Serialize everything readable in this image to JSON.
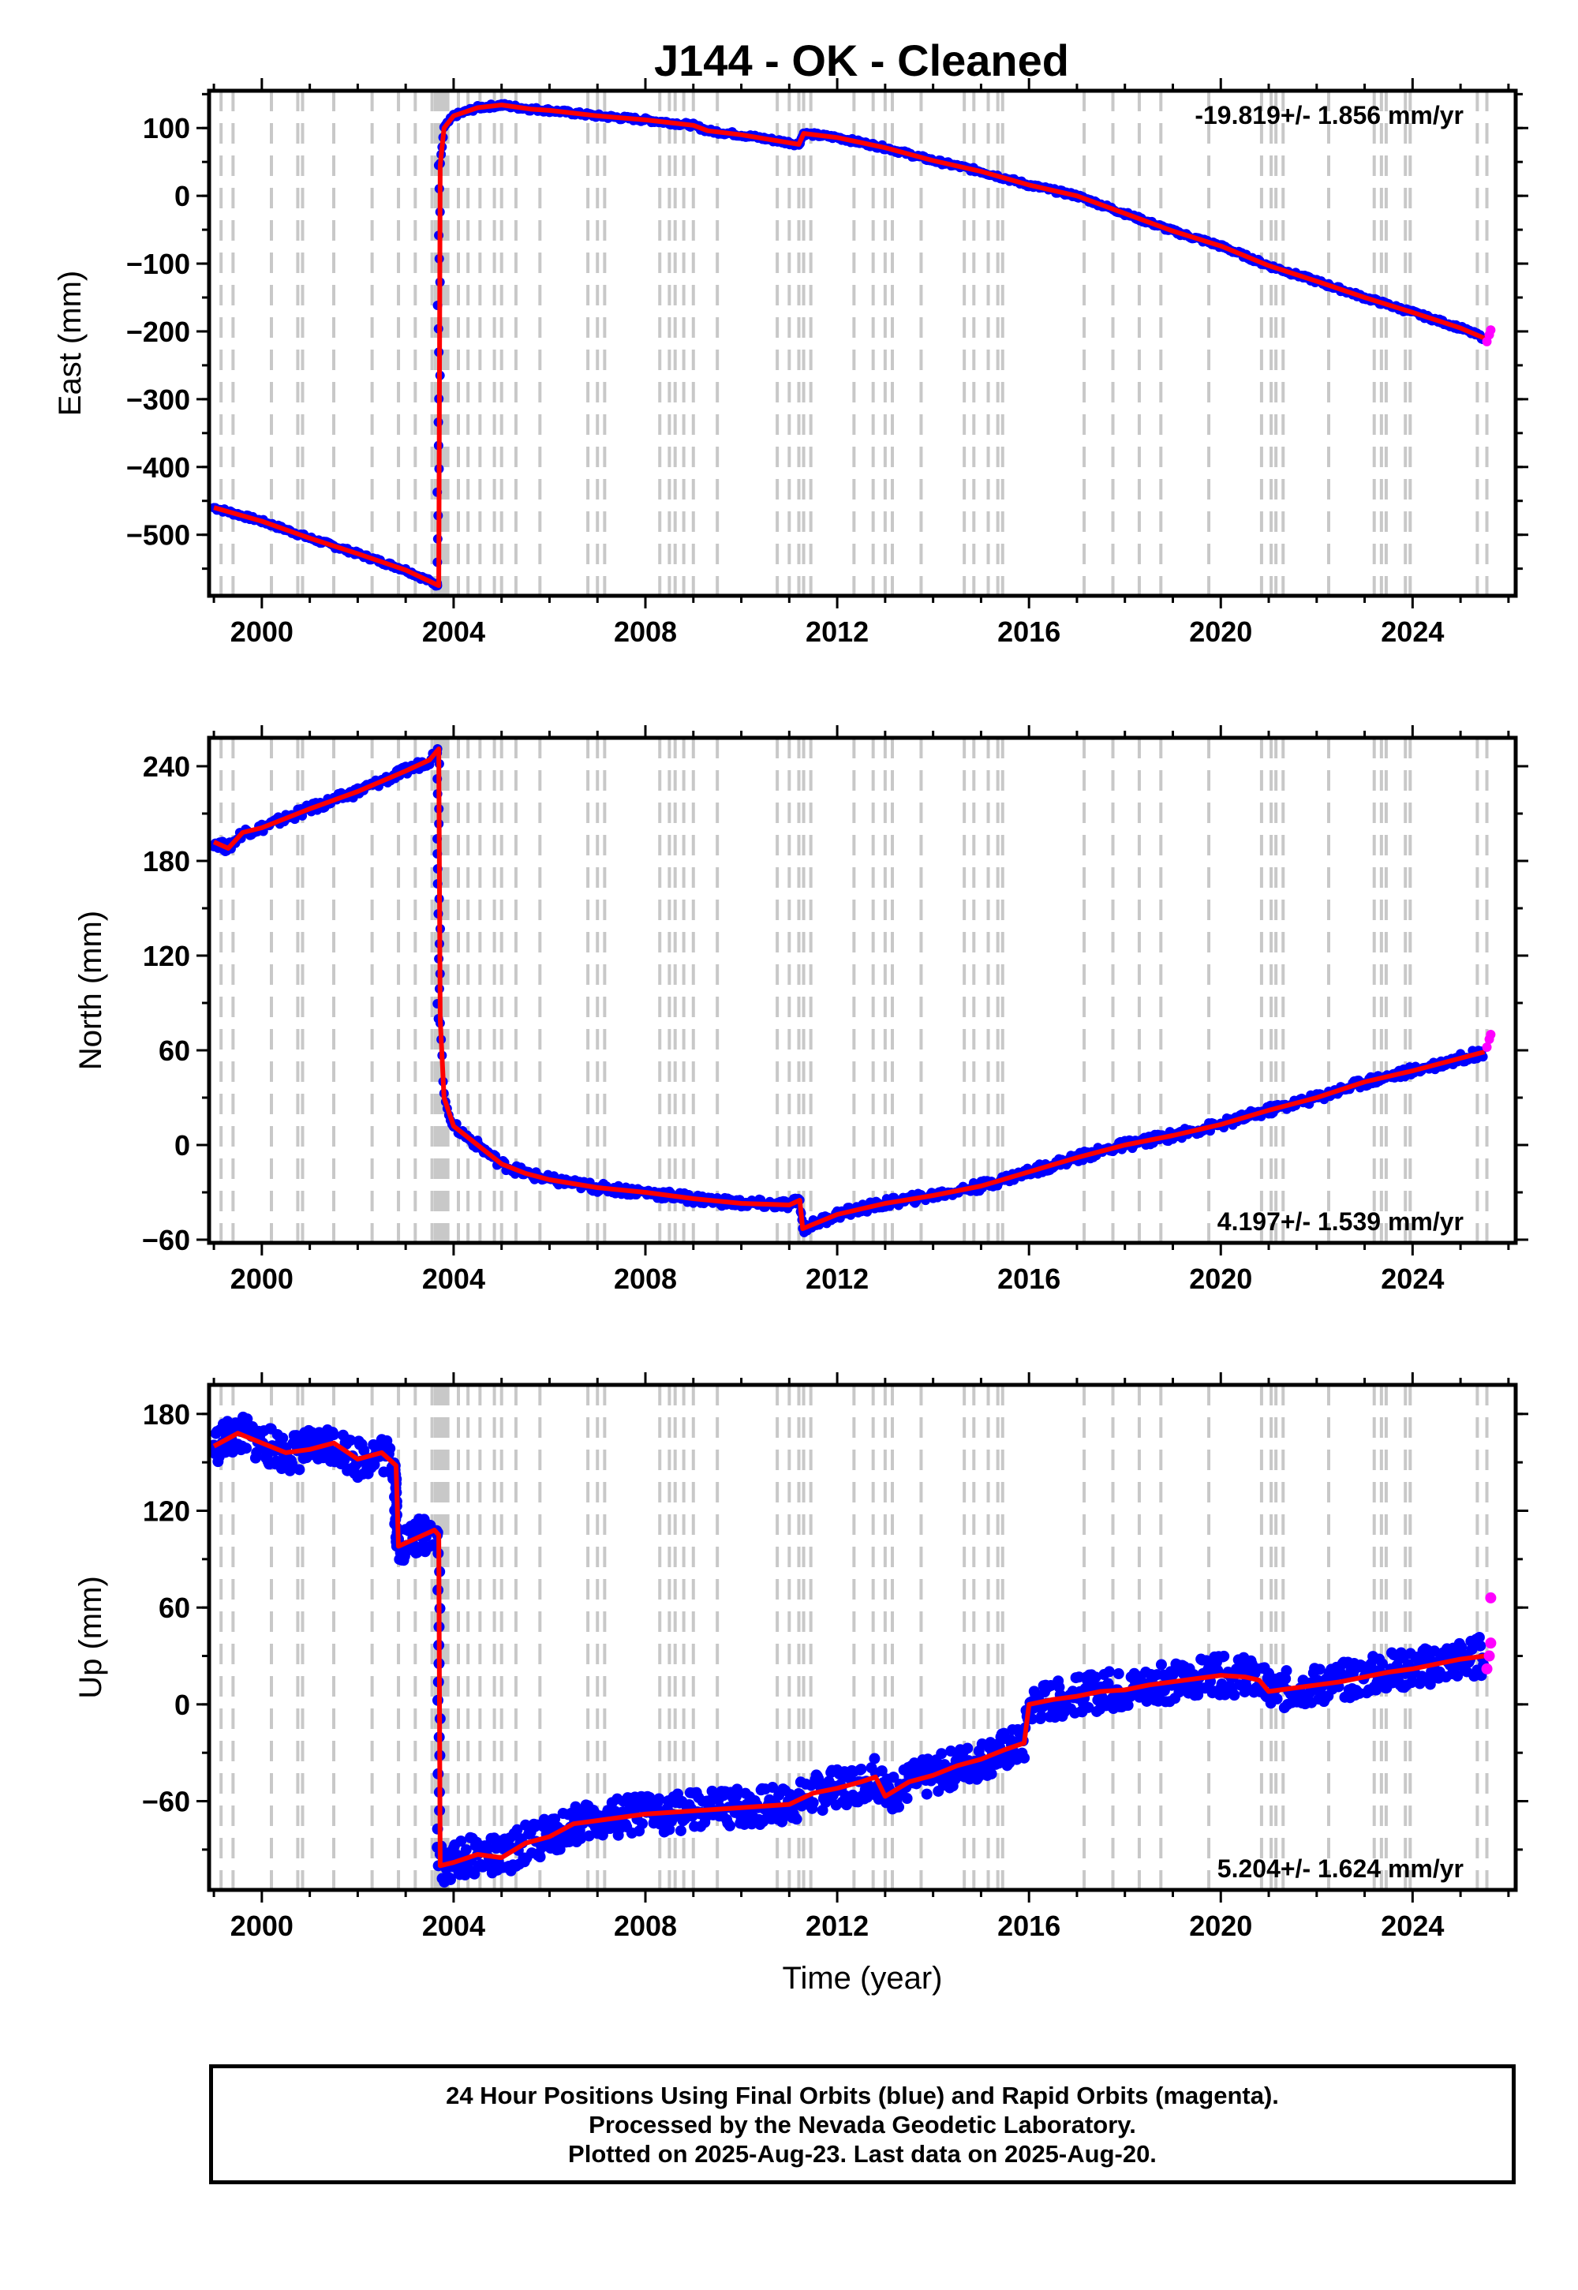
{
  "title": "J144  - OK - Cleaned",
  "colors": {
    "final": "#0000ff",
    "rapid": "#ff00ff",
    "model": "#ff0000",
    "vlines": "#c8c8c8",
    "axes": "#000000"
  },
  "chart_data": [
    {
      "type": "scatter",
      "panel": "east",
      "ylabel": "East (mm)",
      "xlabel": "",
      "rate_label": "-19.819+/- 1.856 mm/yr",
      "rate_position": "top-right",
      "xlim": [
        1998.9,
        2026.15
      ],
      "ylim": [
        -590,
        155
      ],
      "xticks": [
        2000,
        2004,
        2008,
        2012,
        2016,
        2020,
        2024
      ],
      "yticks": [
        -500,
        -400,
        -300,
        -200,
        -100,
        0,
        100
      ],
      "series": [
        {
          "color": "#0000ff",
          "role": "final",
          "x": [
            1999.0,
            2000.0,
            2001.0,
            2002.0,
            2003.0,
            2003.69,
            2003.72,
            2003.8,
            2004.0,
            2004.5,
            2005.0,
            2005.6,
            2006.0,
            2007.0,
            2008.0,
            2009.0,
            2009.3,
            2010.0,
            2011.2,
            2011.3,
            2012.0,
            2013.0,
            2014.0,
            2015.0,
            2016.0,
            2017.0,
            2018.0,
            2019.0,
            2020.0,
            2021.0,
            2022.0,
            2023.0,
            2024.0,
            2025.0,
            2025.5
          ],
          "y": [
            -460,
            -480,
            -505,
            -528,
            -552,
            -575,
            45,
            100,
            118,
            130,
            134,
            128,
            126,
            118,
            112,
            104,
            96,
            90,
            76,
            92,
            86,
            71,
            52,
            36,
            16,
            0,
            -26,
            -52,
            -74,
            -103,
            -126,
            -150,
            -172,
            -195,
            -210
          ]
        }
      ],
      "rapid": {
        "x": [
          2025.55,
          2025.6,
          2025.63
        ],
        "y": [
          -215,
          -205,
          -198
        ]
      },
      "vlines": [
        1999.15,
        1999.4,
        2000.2,
        2000.75,
        2000.85,
        2001.5,
        2002.3,
        2002.85,
        2003.2,
        2003.55,
        2003.62,
        2003.67,
        2003.72,
        2003.78,
        2003.82,
        2003.88,
        2004.1,
        2004.3,
        2004.55,
        2004.85,
        2005.0,
        2005.3,
        2005.8,
        2006.8,
        2007.0,
        2007.15,
        2008.3,
        2008.5,
        2008.62,
        2008.8,
        2009.0,
        2009.5,
        2010.75,
        2011.0,
        2011.2,
        2011.3,
        2011.45,
        2012.35,
        2012.75,
        2013.0,
        2013.15,
        2013.75,
        2014.65,
        2014.85,
        2015.15,
        2015.35,
        2015.45,
        2017.15,
        2017.75,
        2018.3,
        2018.75,
        2019.75,
        2020.85,
        2021.05,
        2021.15,
        2021.3,
        2022.25,
        2023.2,
        2023.35,
        2023.45,
        2023.85,
        2023.95,
        2025.35,
        2025.55
      ]
    },
    {
      "type": "scatter",
      "panel": "north",
      "ylabel": "North (mm)",
      "xlabel": "",
      "rate_label": "4.197+/- 1.539 mm/yr",
      "rate_position": "bottom-right",
      "xlim": [
        1998.9,
        2026.15
      ],
      "ylim": [
        -62,
        258
      ],
      "xticks": [
        2000,
        2004,
        2008,
        2012,
        2016,
        2020,
        2024
      ],
      "yticks": [
        -60,
        0,
        60,
        120,
        180,
        240
      ],
      "series": [
        {
          "color": "#0000ff",
          "role": "final",
          "x": [
            1999.0,
            1999.3,
            1999.6,
            2000.0,
            2001.0,
            2002.0,
            2003.0,
            2003.5,
            2003.69,
            2003.72,
            2003.8,
            2004.0,
            2004.5,
            2005.0,
            2005.5,
            2006.0,
            2007.0,
            2008.0,
            2009.0,
            2010.0,
            2011.0,
            2011.22,
            2011.28,
            2012.0,
            2013.0,
            2014.0,
            2015.0,
            2016.0,
            2017.0,
            2018.0,
            2019.0,
            2020.0,
            2021.0,
            2022.0,
            2023.0,
            2024.0,
            2025.0,
            2025.5
          ],
          "y": [
            192,
            188,
            198,
            201,
            213,
            224,
            237,
            244,
            251,
            80,
            30,
            12,
            0,
            -12,
            -18,
            -22,
            -27,
            -30,
            -34,
            -37,
            -38,
            -35,
            -53,
            -44,
            -37,
            -32,
            -26,
            -17,
            -8,
            0,
            6,
            13,
            22,
            30,
            40,
            47,
            55,
            59
          ]
        }
      ],
      "rapid": {
        "x": [
          2025.55,
          2025.6,
          2025.63
        ],
        "y": [
          62,
          67,
          70
        ]
      },
      "vlines": [
        1999.15,
        1999.4,
        2000.2,
        2000.75,
        2000.85,
        2001.5,
        2002.3,
        2002.85,
        2003.2,
        2003.55,
        2003.62,
        2003.67,
        2003.72,
        2003.78,
        2003.82,
        2003.88,
        2004.1,
        2004.3,
        2004.55,
        2004.85,
        2005.0,
        2005.3,
        2005.8,
        2006.8,
        2007.0,
        2007.15,
        2008.3,
        2008.5,
        2008.62,
        2008.8,
        2009.0,
        2009.5,
        2010.75,
        2011.0,
        2011.2,
        2011.3,
        2011.45,
        2012.35,
        2012.75,
        2013.0,
        2013.15,
        2013.75,
        2014.65,
        2014.85,
        2015.15,
        2015.35,
        2015.45,
        2017.15,
        2017.75,
        2018.3,
        2018.75,
        2019.75,
        2020.85,
        2021.05,
        2021.15,
        2021.3,
        2022.25,
        2023.2,
        2023.35,
        2023.45,
        2023.85,
        2023.95,
        2025.35,
        2025.55
      ]
    },
    {
      "type": "scatter",
      "panel": "up",
      "ylabel": "Up (mm)",
      "xlabel": "Time (year)",
      "rate_label": "5.204+/- 1.624 mm/yr",
      "rate_position": "bottom-right",
      "xlim": [
        1998.9,
        2026.15
      ],
      "ylim": [
        -115,
        198
      ],
      "xticks": [
        2000,
        2004,
        2008,
        2012,
        2016,
        2020,
        2024
      ],
      "yticks": [
        -60,
        0,
        60,
        120,
        180
      ],
      "series": [
        {
          "color": "#0000ff",
          "role": "final",
          "x": [
            1999.0,
            1999.5,
            2000.0,
            2000.5,
            2001.0,
            2001.5,
            2002.0,
            2002.5,
            2002.8,
            2002.85,
            2003.0,
            2003.3,
            2003.6,
            2003.69,
            2003.72,
            2004.0,
            2004.5,
            2005.0,
            2005.5,
            2006.0,
            2006.5,
            2007.0,
            2008.0,
            2009.0,
            2010.0,
            2011.0,
            2011.5,
            2012.0,
            2012.5,
            2012.8,
            2013.0,
            2013.5,
            2014.0,
            2014.5,
            2015.0,
            2015.5,
            2015.9,
            2016.0,
            2016.5,
            2017.0,
            2017.5,
            2018.0,
            2018.5,
            2019.0,
            2019.5,
            2020.0,
            2020.5,
            2020.8,
            2021.0,
            2021.5,
            2022.0,
            2022.5,
            2023.0,
            2023.5,
            2024.0,
            2024.5,
            2025.0,
            2025.5
          ],
          "y": [
            160,
            168,
            162,
            156,
            158,
            162,
            152,
            156,
            148,
            98,
            100,
            104,
            108,
            105,
            -100,
            -98,
            -93,
            -95,
            -86,
            -82,
            -74,
            -72,
            -68,
            -66,
            -64,
            -62,
            -55,
            -52,
            -48,
            -45,
            -57,
            -48,
            -44,
            -38,
            -34,
            -28,
            -24,
            0,
            3,
            5,
            8,
            9,
            12,
            14,
            16,
            18,
            17,
            15,
            8,
            10,
            12,
            14,
            17,
            20,
            22,
            25,
            28,
            30
          ]
        }
      ],
      "rapid": {
        "x": [
          2025.55,
          2025.6,
          2025.63,
          2025.63
        ],
        "y": [
          22,
          30,
          38,
          66
        ]
      },
      "vlines": [
        1999.15,
        1999.4,
        2000.2,
        2000.75,
        2000.85,
        2001.5,
        2002.3,
        2002.85,
        2003.2,
        2003.55,
        2003.62,
        2003.67,
        2003.72,
        2003.78,
        2003.82,
        2003.88,
        2004.1,
        2004.3,
        2004.55,
        2004.85,
        2005.0,
        2005.3,
        2005.8,
        2006.8,
        2007.0,
        2007.15,
        2008.3,
        2008.5,
        2008.62,
        2008.8,
        2009.0,
        2009.5,
        2010.75,
        2011.0,
        2011.2,
        2011.3,
        2011.45,
        2012.35,
        2012.75,
        2013.0,
        2013.15,
        2013.75,
        2014.65,
        2014.85,
        2015.15,
        2015.35,
        2015.45,
        2017.15,
        2017.75,
        2018.3,
        2018.75,
        2019.75,
        2020.85,
        2021.05,
        2021.15,
        2021.3,
        2022.25,
        2023.2,
        2023.35,
        2023.45,
        2023.85,
        2023.95,
        2025.35,
        2025.55
      ]
    }
  ],
  "footer": {
    "line1": "24 Hour Positions Using Final Orbits (blue) and Rapid Orbits (magenta).",
    "line2": "Processed by the Nevada Geodetic Laboratory.",
    "line3": "Plotted on 2025-Aug-23. Last data on 2025-Aug-20."
  }
}
